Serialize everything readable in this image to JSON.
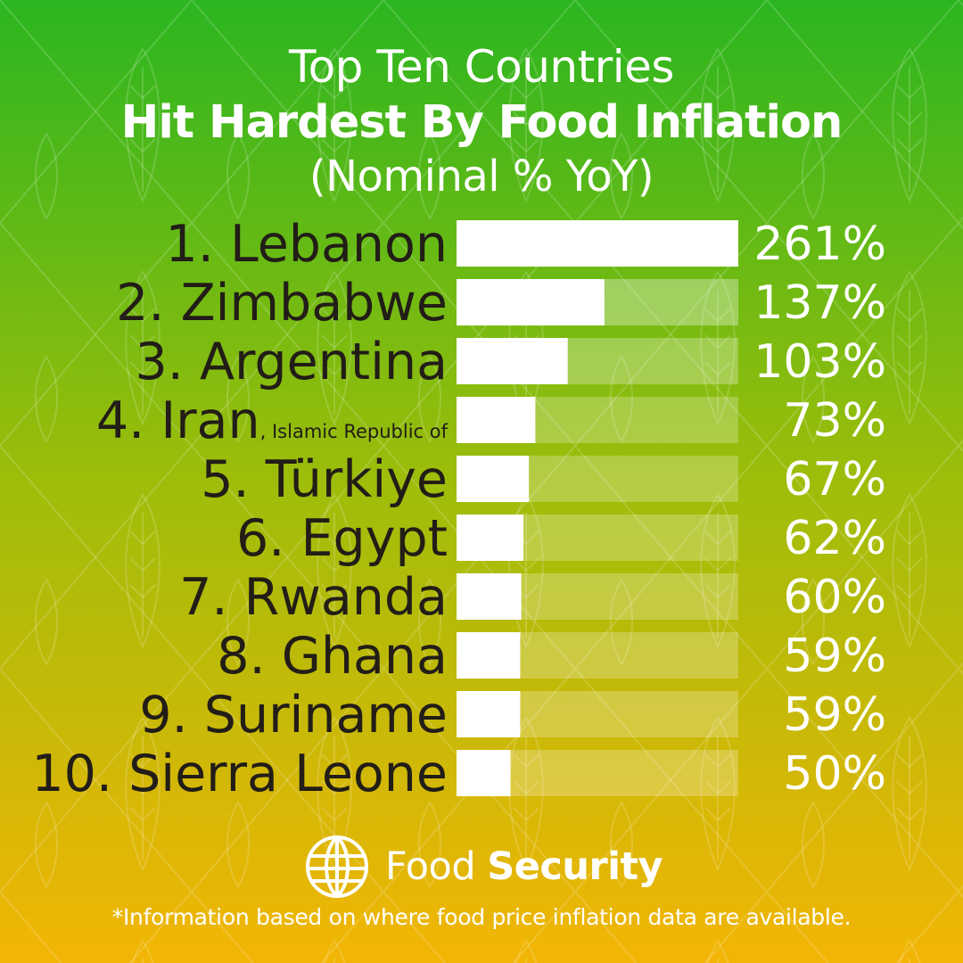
{
  "header": {
    "title_line1": "Top Ten Countries",
    "title_line2": "Hit Hardest By Food Inflation",
    "title_line3": "(Nominal % YoY)"
  },
  "colors": {
    "gradient_top": "#2bb620",
    "gradient_mid": "#9ebd0a",
    "gradient_bottom": "#f3b505",
    "bar_fill": "#ffffff",
    "country_text": "#221d17",
    "pattern_stroke": "#ffffff"
  },
  "chart_data": {
    "type": "bar",
    "orientation": "horizontal",
    "title": "Top Ten Countries Hit Hardest By Food Inflation",
    "subtitle": "(Nominal % YoY)",
    "categories": [
      "1. Lebanon",
      "2. Zimbabwe",
      "3. Argentina",
      "4. Iran",
      "5. Türkiye",
      "6. Egypt",
      "7. Rwanda",
      "8. Ghana",
      "9. Suriname",
      "10. Sierra Leone"
    ],
    "category_suffixes": [
      "",
      "",
      "",
      ", Islamic Republic of",
      "",
      "",
      "",
      "",
      "",
      ""
    ],
    "values": [
      261,
      137,
      103,
      73,
      67,
      62,
      60,
      59,
      59,
      50
    ],
    "value_labels": [
      "261%",
      "137%",
      "103%",
      "73%",
      "67%",
      "62%",
      "60%",
      "59%",
      "59%",
      "50%"
    ],
    "xlim": [
      0,
      261
    ],
    "grid": false,
    "legend": "none"
  },
  "logo": {
    "icon": "globe-icon",
    "word1": "Food",
    "word2": "Security"
  },
  "footnote": "*Information based on where food price inflation data are available."
}
